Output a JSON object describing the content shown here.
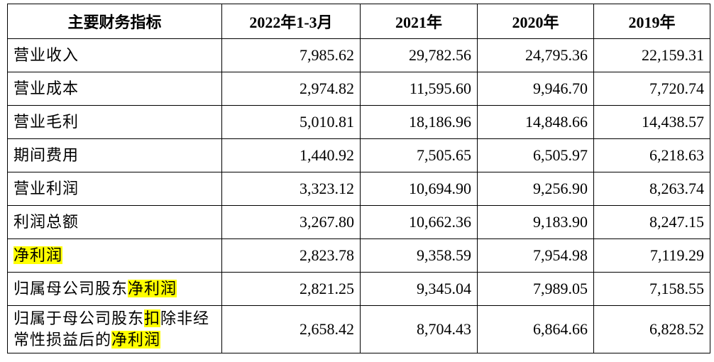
{
  "table": {
    "headers": [
      "主要财务指标",
      "2022年1-3月",
      "2021年",
      "2020年",
      "2019年"
    ],
    "rows": [
      {
        "label": [
          {
            "text": "营业收入"
          }
        ],
        "cells": [
          "7,985.62",
          "29,782.56",
          "24,795.36",
          "22,159.31"
        ]
      },
      {
        "label": [
          {
            "text": "营业成本"
          }
        ],
        "cells": [
          "2,974.82",
          "11,595.60",
          "9,946.70",
          "7,720.74"
        ]
      },
      {
        "label": [
          {
            "text": "营业毛利"
          }
        ],
        "cells": [
          "5,010.81",
          "18,186.96",
          "14,848.66",
          "14,438.57"
        ]
      },
      {
        "label": [
          {
            "text": "期间费用"
          }
        ],
        "cells": [
          "1,440.92",
          "7,505.65",
          "6,505.97",
          "6,218.63"
        ]
      },
      {
        "label": [
          {
            "text": "营业利润"
          }
        ],
        "cells": [
          "3,323.12",
          "10,694.90",
          "9,256.90",
          "8,263.74"
        ]
      },
      {
        "label": [
          {
            "text": "利润总额"
          }
        ],
        "cells": [
          "3,267.80",
          "10,662.36",
          "9,183.90",
          "8,247.15"
        ]
      },
      {
        "label": [
          {
            "text": "净利润",
            "highlight": true
          }
        ],
        "cells": [
          "2,823.78",
          "9,358.59",
          "7,954.98",
          "7,119.29"
        ]
      },
      {
        "label": [
          {
            "text": "归属母公司股东"
          },
          {
            "text": "净利润",
            "highlight": true
          }
        ],
        "cells": [
          "2,821.25",
          "9,345.04",
          "7,989.05",
          "7,158.55"
        ]
      },
      {
        "label": [
          {
            "text": "归属于母公司股东"
          },
          {
            "text": "扣",
            "highlight": true
          },
          {
            "text": "除非经常性损益后的"
          },
          {
            "text": "净利润",
            "highlight": true
          }
        ],
        "cells": [
          "2,658.42",
          "8,704.43",
          "6,864.66",
          "6,828.52"
        ]
      }
    ]
  }
}
